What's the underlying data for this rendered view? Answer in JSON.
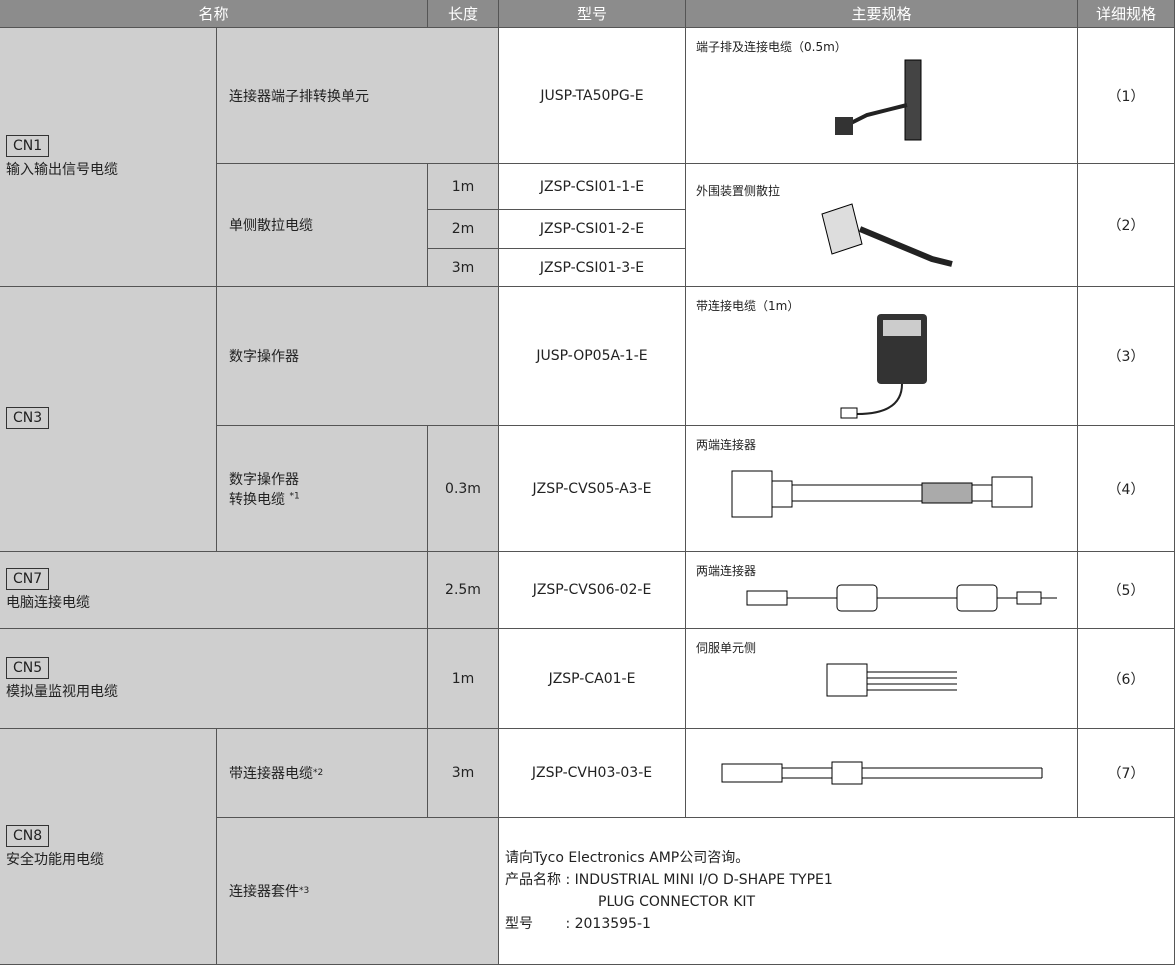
{
  "header": {
    "name": "名称",
    "length": "长度",
    "model": "型号",
    "spec": "主要规格",
    "detail": "详细规格"
  },
  "cn1": {
    "tag": "CN1",
    "label": "输入输出信号电缆",
    "items": [
      {
        "name": "连接器端子排转换单元",
        "model": "JUSP-TA50PG-E",
        "spec": "端子排及连接电缆（0.5m）",
        "detail": "（1）"
      },
      {
        "name": "单侧散拉电缆",
        "lengths": [
          "1m",
          "2m",
          "3m"
        ],
        "models": [
          "JZSP-CSI01-1-E",
          "JZSP-CSI01-2-E",
          "JZSP-CSI01-3-E"
        ],
        "spec": "外围装置侧散拉",
        "detail": "（2）"
      }
    ]
  },
  "cn3": {
    "tag": "CN3",
    "items": [
      {
        "name": "数字操作器",
        "model": "JUSP-OP05A-1-E",
        "spec": "带连接电缆（1m）",
        "detail": "（3）"
      },
      {
        "name_lines": [
          "数字操作器",
          "转换电缆 "
        ],
        "note": "*1",
        "length": "0.3m",
        "model": "JZSP-CVS05-A3-E",
        "spec": "两端连接器",
        "detail": "（4）"
      }
    ]
  },
  "cn7": {
    "tag": "CN7",
    "label": "电脑连接电缆",
    "length": "2.5m",
    "model": "JZSP-CVS06-02-E",
    "spec": "两端连接器",
    "detail": "（5）"
  },
  "cn5": {
    "tag": "CN5",
    "label": "模拟量监视用电缆",
    "length": "1m",
    "model": "JZSP-CA01-E",
    "spec": "伺服单元侧",
    "detail": "（6）"
  },
  "cn8": {
    "tag": "CN8",
    "label": "安全功能用电缆",
    "items": [
      {
        "name": "带连接器电缆 ",
        "note": "*2",
        "length": "3m",
        "model": "JZSP-CVH03-03-E",
        "detail": "（7）"
      },
      {
        "name": "连接器套件 ",
        "note": "*3",
        "lines": [
          "请向Tyco Electronics AMP公司咨询。",
          "产品名称 : INDUSTRIAL MINI I/O D-SHAPE TYPE1",
          "PLUG CONNECTOR KIT",
          "型号　　 : 2013595-1"
        ]
      }
    ]
  }
}
